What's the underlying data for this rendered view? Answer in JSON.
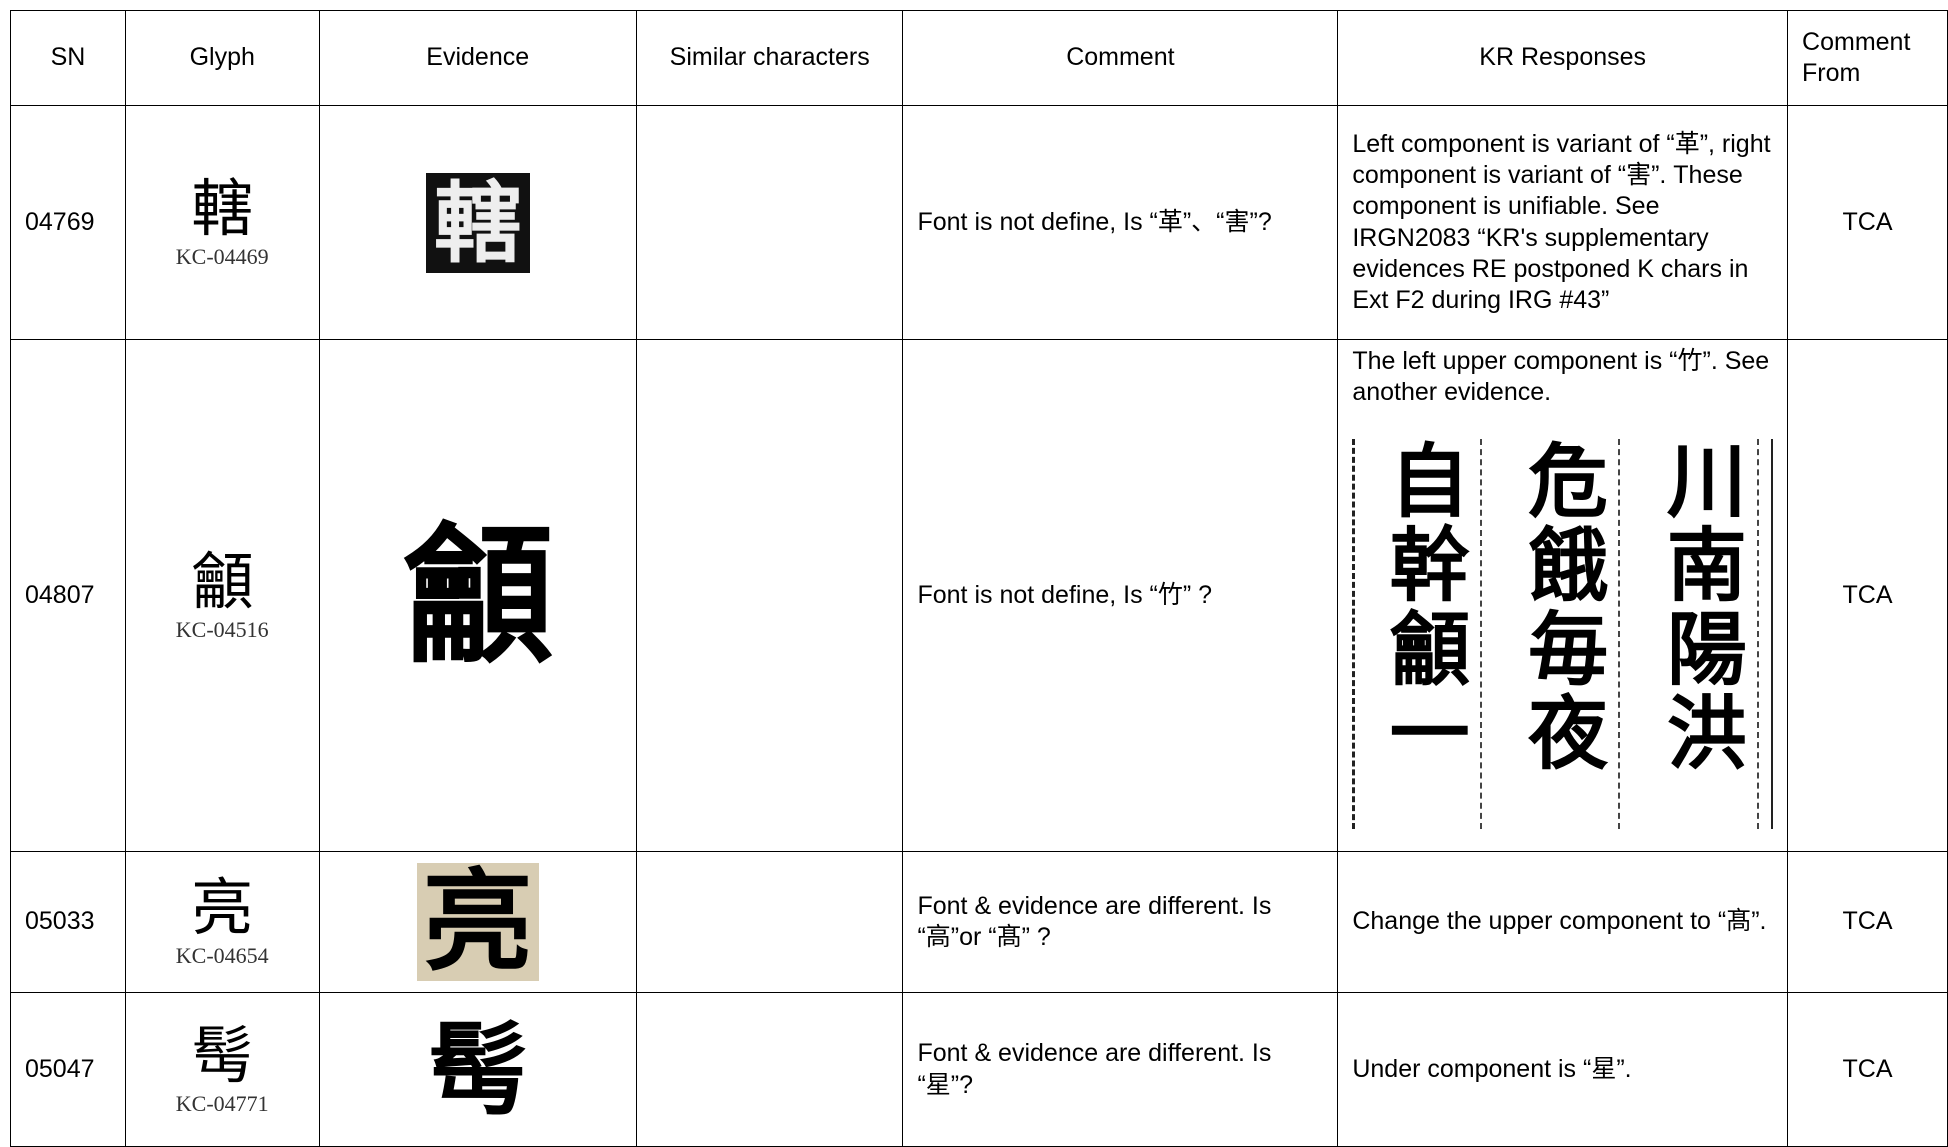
{
  "table": {
    "headers": [
      "SN",
      "Glyph",
      "Evidence",
      "Similar characters",
      "Comment",
      "KR Responses",
      "Comment From"
    ],
    "rows": [
      {
        "sn": "04769",
        "glyph": "轄",
        "code": "KC-04469",
        "evidence": "轄",
        "similar": "",
        "comment": "Font is not define, Is “革”、“害”?",
        "response": "Left component is variant of “革”, right component is variant of “害”. These component is unifiable. See IRGN2083 “KR's supplementary evidences RE postponed K chars in Ext F2 during IRG #43”",
        "from": "TCA"
      },
      {
        "sn": "04807",
        "glyph": "龥",
        "code": "KC-04516",
        "evidence": "龥",
        "similar": "",
        "comment": "Font is not define, Is “竹” ?",
        "response": "The left upper component is “竹”. See another evidence.",
        "response_columns": [
          "自幹龥一",
          "危餓毎夜",
          "川南陽洪"
        ],
        "from": "TCA"
      },
      {
        "sn": "05033",
        "glyph": "亮",
        "code": "KC-04654",
        "evidence": "亮",
        "similar": "",
        "comment": "Font & evidence are different. Is “高”or “髙” ?",
        "response": "Change the upper component to “髙”.",
        "from": "TCA"
      },
      {
        "sn": "05047",
        "glyph": "髩",
        "code": "KC-04771",
        "evidence": "髩",
        "similar": "",
        "comment": "Font & evidence are different. Is “星”?",
        "response": "Under component is “星”.",
        "from": "TCA"
      }
    ]
  }
}
